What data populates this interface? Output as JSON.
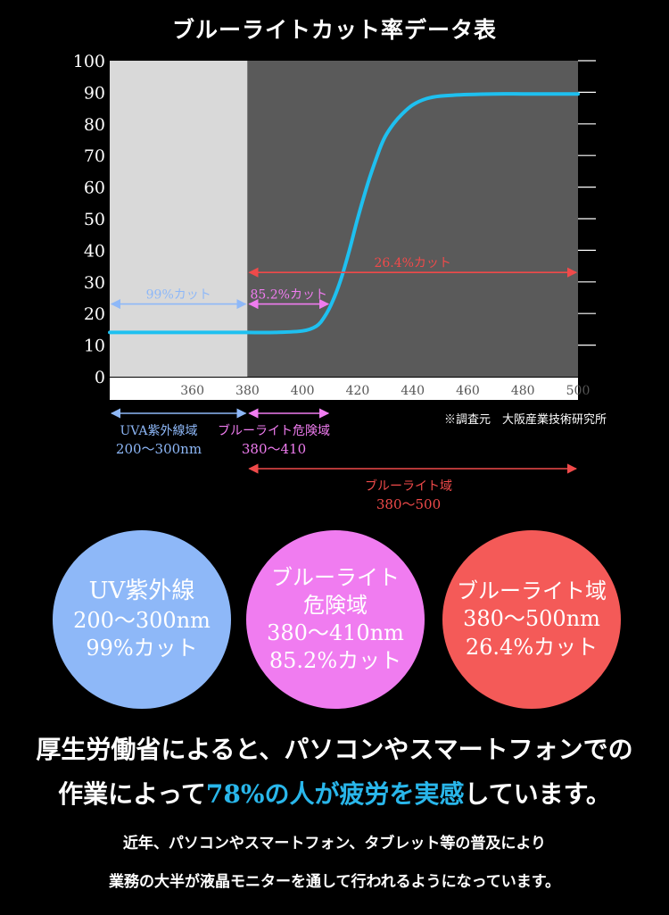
{
  "chart_data": {
    "type": "line",
    "title": "ブルーライトカット率データ表",
    "xlim": [
      330,
      500
    ],
    "ylim": [
      0,
      100
    ],
    "x_ticks": [
      360,
      380,
      400,
      420,
      440,
      460,
      480,
      500
    ],
    "y_ticks": [
      0,
      10,
      20,
      30,
      40,
      50,
      60,
      70,
      80,
      90,
      100
    ],
    "grid": false,
    "series": [
      {
        "color": "#1ec0f0",
        "x": [
          330,
          345,
          360,
          375,
          380,
          390,
          400,
          405,
          408,
          411,
          414,
          417,
          420,
          424,
          428,
          430,
          433,
          436,
          440,
          445,
          450,
          460,
          470,
          480,
          490,
          500
        ],
        "y": [
          14,
          14,
          14,
          14,
          14,
          14,
          14.5,
          16,
          19,
          24,
          31,
          40,
          50,
          62,
          72,
          76,
          80,
          83,
          86,
          88,
          88.8,
          89.3,
          89.5,
          89.5,
          89.5,
          89.5
        ]
      }
    ],
    "regions": [
      {
        "from": 330,
        "to": 380,
        "color": "#d9d9d9"
      },
      {
        "from": 380,
        "to": 500,
        "color": "#5a5a5a"
      }
    ],
    "annotations": [
      {
        "text": "99%カット",
        "from": 330,
        "to": 380,
        "y": 23,
        "color": "#8eb8f8"
      },
      {
        "text": "85.2%カット",
        "from": 380,
        "to": 410,
        "y": 23,
        "color": "#f07cf0"
      },
      {
        "text": "26.4%カット",
        "from": 380,
        "to": 500,
        "y": 33,
        "color": "#f04a4a"
      }
    ],
    "source_note": "※調査元　大阪産業技術研究所"
  },
  "ranges": [
    {
      "label": "UVA紫外線域",
      "sub": "200〜300nm",
      "color": "#8eb8f8",
      "from": 330,
      "to": 380
    },
    {
      "label": "ブルーライト危険域",
      "sub": "380〜410",
      "color": "#f07cf0",
      "from": 380,
      "to": 410
    },
    {
      "label": "ブルーライト域",
      "sub": "380〜500",
      "color": "#f04a4a",
      "from": 380,
      "to": 500
    }
  ],
  "circles": [
    {
      "lines": [
        "UV紫外線",
        "200〜300nm",
        "99%カット"
      ],
      "color": "#8eb8f8"
    },
    {
      "lines": [
        "ブルーライト",
        "危険域",
        "380〜410nm",
        "85.2%カット"
      ],
      "color": "#f07cf0"
    },
    {
      "lines": [
        "ブルーライト域",
        "380〜500nm",
        "26.4%カット"
      ],
      "color": "#f45a58"
    }
  ],
  "headline": {
    "line1": "厚生労働省によると、パソコンやスマートフォンでの",
    "line2_pre": "作業によって",
    "line2_highlight": "78%の人が疲労を実感",
    "line2_post": "しています。"
  },
  "subtext": {
    "line1": "近年、パソコンやスマートフォン、タブレット等の普及により",
    "line2": "業務の大半が液晶モニターを通して行われるようになっています。"
  }
}
